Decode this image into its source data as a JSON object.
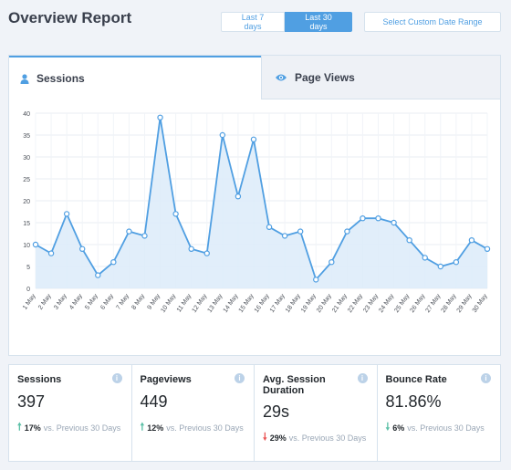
{
  "header": {
    "title": "Overview Report",
    "range_7": "Last 7 days",
    "range_30": "Last 30 days",
    "custom_range": "Select Custom Date Range"
  },
  "tabs": [
    {
      "label": "Sessions",
      "icon": "user-icon",
      "active": true
    },
    {
      "label": "Page Views",
      "icon": "eye-icon",
      "active": false
    }
  ],
  "colors": {
    "accent": "#509fe2",
    "area_fill": "#dcebf9",
    "up": "#5cc0a7",
    "down_bad": "#eb5757"
  },
  "chart_data": {
    "type": "area",
    "categories": [
      "1 May",
      "2 May",
      "3 May",
      "4 May",
      "5 May",
      "6 May",
      "7 May",
      "8 May",
      "9 May",
      "10 May",
      "11 May",
      "12 May",
      "13 May",
      "14 May",
      "15 May",
      "16 May",
      "17 May",
      "18 May",
      "19 May",
      "20 May",
      "21 May",
      "22 May",
      "23 May",
      "24 May",
      "25 May",
      "26 May",
      "27 May",
      "28 May",
      "29 May",
      "30 May"
    ],
    "series": [
      {
        "values": [
          10,
          8,
          17,
          9,
          3,
          6,
          13,
          12,
          39,
          17,
          9,
          8,
          35,
          21,
          34,
          14,
          12,
          13,
          2,
          6,
          13,
          16,
          16,
          15,
          11,
          7,
          5,
          6,
          11,
          9
        ]
      }
    ],
    "yticks": [
      0,
      5,
      10,
      15,
      20,
      25,
      30,
      35,
      40
    ],
    "ylim": [
      0,
      40
    ],
    "grid": true,
    "xlabel": "",
    "ylabel": ""
  },
  "stats": [
    {
      "title": "Sessions",
      "value": "397",
      "direction": "up",
      "change": "17%",
      "compare": "vs. Previous 30 Days"
    },
    {
      "title": "Pageviews",
      "value": "449",
      "direction": "up",
      "change": "12%",
      "compare": "vs. Previous 30 Days"
    },
    {
      "title": "Avg. Session Duration",
      "value": "29s",
      "direction": "down-red",
      "change": "29%",
      "compare": "vs. Previous 30 Days"
    },
    {
      "title": "Bounce Rate",
      "value": "81.86%",
      "direction": "down-green",
      "change": "6%",
      "compare": "vs. Previous 30 Days"
    }
  ]
}
